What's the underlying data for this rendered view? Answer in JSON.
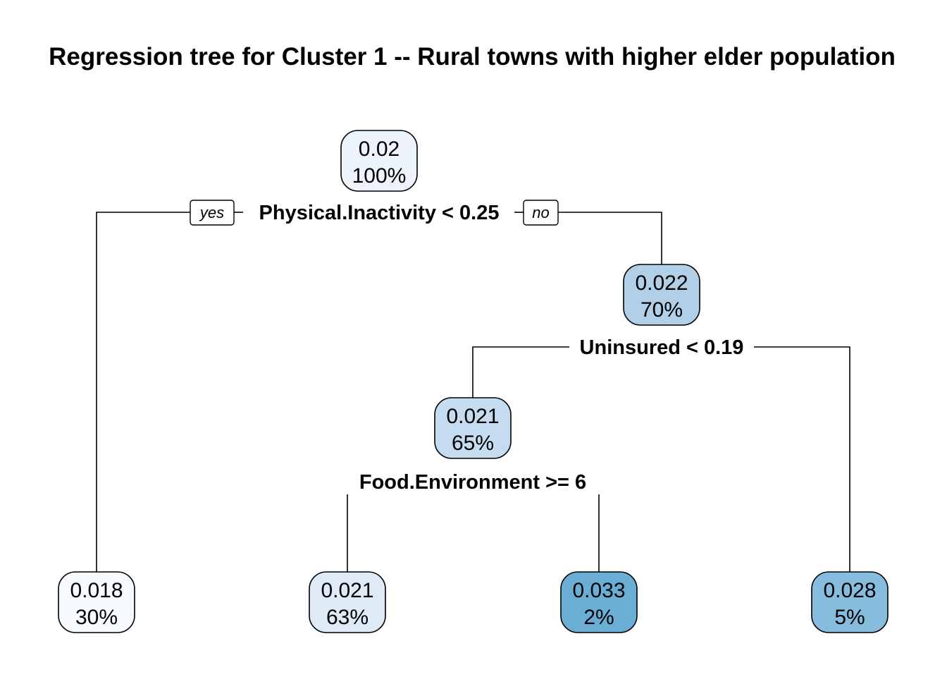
{
  "title": "Regression tree for Cluster 1 -- Rural towns with higher elder population",
  "branch_labels": {
    "yes": "yes",
    "no": "no"
  },
  "colors": {
    "edge": "#000000",
    "node_min": "#f7fbff",
    "node_max": "#6aaed6"
  },
  "nodes": [
    {
      "id": "root",
      "value": "0.02",
      "percent": "100%",
      "fill": "#ecf3fb"
    },
    {
      "id": "n3",
      "value": "0.022",
      "percent": "70%",
      "fill": "#b1cfe6"
    },
    {
      "id": "n6",
      "value": "0.021",
      "percent": "65%",
      "fill": "#c5dbef"
    },
    {
      "id": "leaf2",
      "value": "0.018",
      "percent": "30%",
      "fill": "#f7fbff"
    },
    {
      "id": "leaf12",
      "value": "0.021",
      "percent": "63%",
      "fill": "#deebf7"
    },
    {
      "id": "leaf13",
      "value": "0.033",
      "percent": "2%",
      "fill": "#6aaed6"
    },
    {
      "id": "leaf7",
      "value": "0.028",
      "percent": "5%",
      "fill": "#86bcde"
    }
  ],
  "splits": [
    {
      "id": "root",
      "label": "Physical.Inactivity < 0.25"
    },
    {
      "id": "n3",
      "label": "Uninsured < 0.19"
    },
    {
      "id": "n6",
      "label": "Food.Environment >= 6"
    }
  ]
}
